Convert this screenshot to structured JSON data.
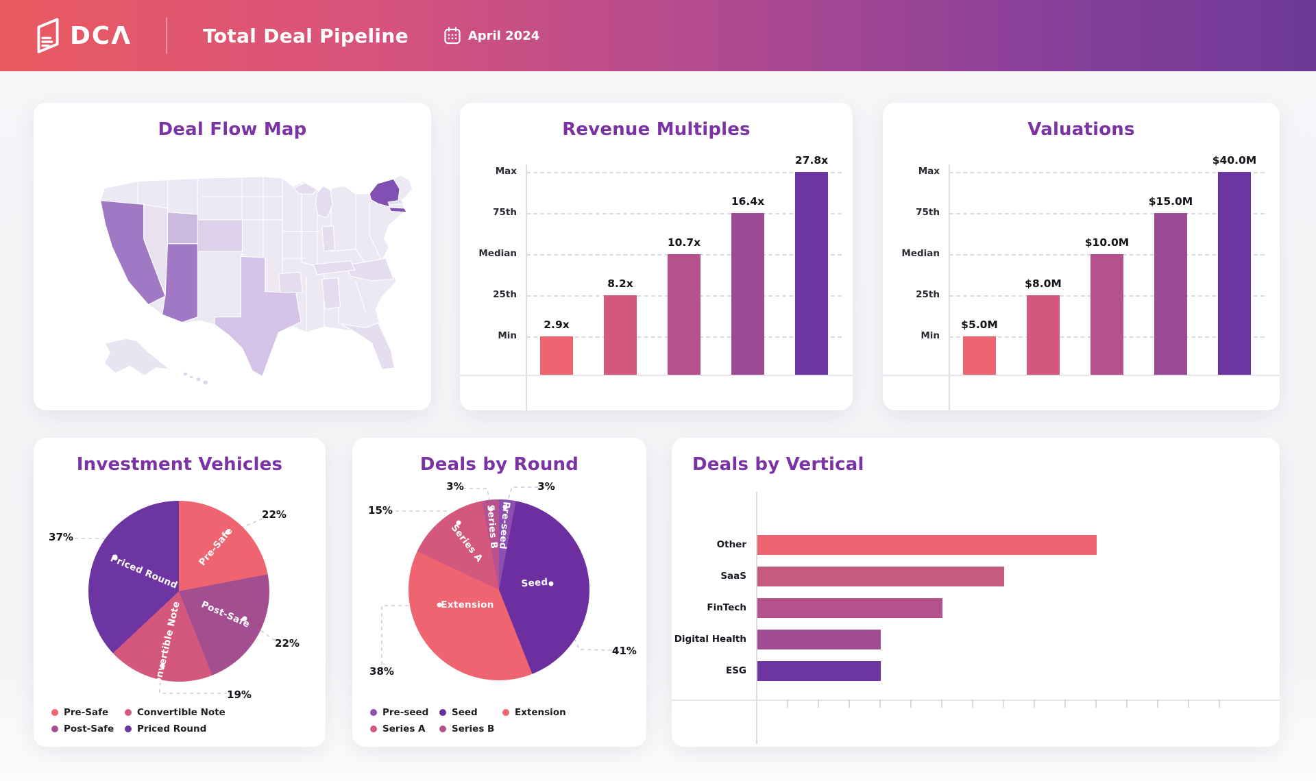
{
  "header": {
    "logo_text": "DCΛ",
    "title": "Total Deal Pipeline",
    "date_label": "April 2024"
  },
  "chart_data": [
    {
      "type": "choropleth",
      "title": "Deal Flow Map",
      "region": "United States",
      "state_intensity": {
        "NY": "highest",
        "CA": "high",
        "AZ": "high",
        "UT": "medium",
        "TX": "medium",
        "CO": "light",
        "NV": "light",
        "others": "base"
      },
      "palette": {
        "base": "#ece8f4",
        "light": "#ddd2ea",
        "medium": "#cbb9df",
        "high": "#a078c4",
        "highest": "#8150b2"
      }
    },
    {
      "type": "bar",
      "title": "Revenue Multiples",
      "categories": [
        "Min",
        "25th",
        "Median",
        "75th",
        "Max"
      ],
      "values": [
        2.9,
        8.2,
        10.7,
        16.4,
        27.8
      ],
      "value_labels": [
        "2.9x",
        "8.2x",
        "10.7x",
        "16.4x",
        "27.8x"
      ],
      "y_tick_labels": [
        "Max",
        "75th",
        "Median",
        "25th",
        "Min"
      ],
      "bar_colors": [
        "#ee6470",
        "#d4587e",
        "#b5518c",
        "#9b4a94",
        "#6d35a2"
      ],
      "grid": "dashed horizontal, bars top out at their percentile gridline",
      "legend_position": "none"
    },
    {
      "type": "bar",
      "title": "Valuations",
      "categories": [
        "Min",
        "25th",
        "Median",
        "75th",
        "Max"
      ],
      "values": [
        5.0,
        8.0,
        10.0,
        15.0,
        40.0
      ],
      "value_labels": [
        "$5.0M",
        "$8.0M",
        "$10.0M",
        "$15.0M",
        "$40.0M"
      ],
      "y_tick_labels": [
        "Max",
        "75th",
        "Median",
        "25th",
        "Min"
      ],
      "bar_colors": [
        "#ee6470",
        "#d4587e",
        "#b5518c",
        "#9b4a94",
        "#6d35a2"
      ],
      "grid": "dashed horizontal, bars top out at their percentile gridline",
      "legend_position": "none"
    },
    {
      "type": "pie",
      "title": "Investment Vehicles",
      "slices": [
        {
          "label": "Pre-Safe",
          "percent": 22,
          "percent_label": "22%",
          "color": "#ee6470"
        },
        {
          "label": "Post-Safe",
          "percent": 22,
          "percent_label": "22%",
          "color": "#a44e92"
        },
        {
          "label": "Convertible Note",
          "percent": 19,
          "percent_label": "19%",
          "color": "#d4587e"
        },
        {
          "label": "Priced Round",
          "percent": 37,
          "percent_label": "37%",
          "color": "#6d35a2"
        }
      ],
      "legend_order": [
        0,
        2,
        1,
        3
      ],
      "legend_position": "bottom-left"
    },
    {
      "type": "pie",
      "title": "Deals by Round",
      "slices": [
        {
          "label": "Pre-seed",
          "percent": 3,
          "percent_label": "3%",
          "color": "#8a4fb0"
        },
        {
          "label": "Seed",
          "percent": 41,
          "percent_label": "41%",
          "color": "#6d2fa0"
        },
        {
          "label": "Extension",
          "percent": 38,
          "percent_label": "38%",
          "color": "#ee6470"
        },
        {
          "label": "Series A",
          "percent": 15,
          "percent_label": "15%",
          "color": "#d4587e"
        },
        {
          "label": "Series B",
          "percent": 3,
          "percent_label": "3%",
          "color": "#b5518c"
        }
      ],
      "legend_order": [
        0,
        1,
        2,
        3,
        4
      ],
      "legend_position": "bottom-left"
    },
    {
      "type": "bar",
      "orientation": "horizontal",
      "title": "Deals by Vertical",
      "categories": [
        "Other",
        "SaaS",
        "FinTech",
        "Digital Health",
        "ESG"
      ],
      "values": [
        11,
        8,
        6,
        4,
        4
      ],
      "bar_colors": [
        "#ee6470",
        "#c75a81",
        "#b5518c",
        "#a04b94",
        "#6d35a2"
      ],
      "xlabel": "",
      "ylabel": "",
      "x_axis": "unlabeled tick marks, 1 unit per tick",
      "legend_position": "none"
    }
  ]
}
